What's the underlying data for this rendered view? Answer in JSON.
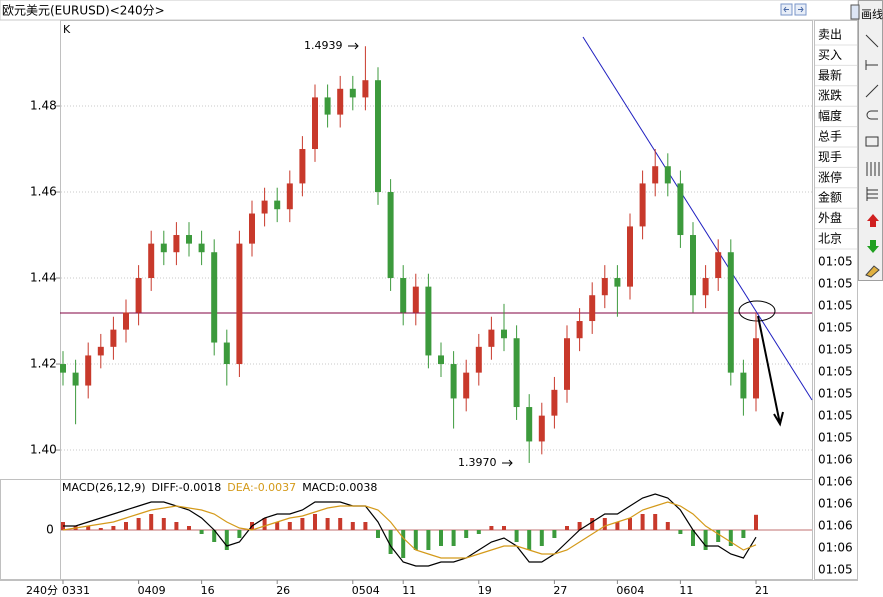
{
  "chart_data": {
    "type": "candlestick",
    "title": "欧元美元(EURUSD)<240分>",
    "period_label": "240分",
    "axis_mark": "K",
    "annotations": [
      "1.4939",
      "1.3970"
    ],
    "categories": [
      "0331",
      null,
      null,
      null,
      null,
      null,
      "0409",
      null,
      null,
      null,
      null,
      "16",
      null,
      null,
      null,
      null,
      null,
      "26",
      null,
      null,
      null,
      null,
      null,
      "0504",
      null,
      null,
      null,
      "11",
      null,
      null,
      null,
      null,
      null,
      "19",
      null,
      null,
      null,
      null,
      null,
      "27",
      null,
      null,
      null,
      null,
      "0604",
      null,
      null,
      null,
      null,
      "11",
      null,
      null,
      null,
      null,
      null,
      "21"
    ],
    "open": [
      1.42,
      1.418,
      1.415,
      1.422,
      1.424,
      1.428,
      1.432,
      1.44,
      1.448,
      1.446,
      1.45,
      1.448,
      1.446,
      1.425,
      1.42,
      1.448,
      1.455,
      1.458,
      1.456,
      1.462,
      1.47,
      1.482,
      1.478,
      1.484,
      1.482,
      1.486,
      1.46,
      1.44,
      1.432,
      1.438,
      1.422,
      1.42,
      1.412,
      1.418,
      1.424,
      1.428,
      1.426,
      1.41,
      1.402,
      1.408,
      1.414,
      1.426,
      1.43,
      1.436,
      1.44,
      1.438,
      1.452,
      1.462,
      1.466,
      1.462,
      1.45,
      1.436,
      1.44,
      1.446,
      1.418,
      1.412
    ],
    "high": [
      1.423,
      1.421,
      1.425,
      1.427,
      1.431,
      1.435,
      1.443,
      1.451,
      1.451,
      1.453,
      1.453,
      1.451,
      1.449,
      1.428,
      1.451,
      1.458,
      1.461,
      1.461,
      1.465,
      1.473,
      1.485,
      1.485,
      1.487,
      1.487,
      1.4939,
      1.489,
      1.463,
      1.443,
      1.441,
      1.441,
      1.425,
      1.423,
      1.421,
      1.427,
      1.431,
      1.434,
      1.429,
      1.413,
      1.411,
      1.417,
      1.429,
      1.433,
      1.439,
      1.443,
      1.443,
      1.455,
      1.465,
      1.47,
      1.469,
      1.465,
      1.453,
      1.443,
      1.449,
      1.449,
      1.421,
      1.432
    ],
    "low": [
      1.415,
      1.406,
      1.412,
      1.419,
      1.421,
      1.425,
      1.429,
      1.437,
      1.443,
      1.443,
      1.445,
      1.443,
      1.422,
      1.415,
      1.417,
      1.445,
      1.452,
      1.453,
      1.453,
      1.459,
      1.467,
      1.475,
      1.475,
      1.479,
      1.479,
      1.457,
      1.437,
      1.429,
      1.429,
      1.419,
      1.417,
      1.405,
      1.409,
      1.415,
      1.421,
      1.423,
      1.407,
      1.397,
      1.399,
      1.405,
      1.411,
      1.423,
      1.427,
      1.433,
      1.431,
      1.435,
      1.449,
      1.459,
      1.459,
      1.447,
      1.432,
      1.433,
      1.437,
      1.415,
      1.408,
      1.409
    ],
    "close": [
      1.418,
      1.415,
      1.422,
      1.424,
      1.428,
      1.432,
      1.44,
      1.448,
      1.446,
      1.45,
      1.448,
      1.446,
      1.425,
      1.42,
      1.448,
      1.455,
      1.458,
      1.456,
      1.462,
      1.47,
      1.482,
      1.478,
      1.484,
      1.482,
      1.486,
      1.46,
      1.44,
      1.432,
      1.438,
      1.422,
      1.42,
      1.412,
      1.418,
      1.424,
      1.428,
      1.426,
      1.41,
      1.402,
      1.408,
      1.414,
      1.426,
      1.43,
      1.436,
      1.44,
      1.438,
      1.452,
      1.462,
      1.466,
      1.462,
      1.45,
      1.436,
      1.44,
      1.446,
      1.418,
      1.412,
      1.426
    ],
    "up_color": "#c8392b",
    "down_color": "#3c9a3c",
    "ylim": [
      1.3935,
      1.5
    ],
    "yticks": [
      {
        "value": 1.4,
        "label": "1.40"
      },
      1.42,
      1.44,
      1.46,
      1.48
    ],
    "grid": true,
    "macd": {
      "title": "MACD(26,12,9)",
      "ylim": [
        -0.012,
        0.012
      ],
      "yticks": [
        0
      ],
      "series": [
        {
          "name": "DIFF:",
          "color": "#000000",
          "values": [
            0.001,
            0.001,
            0.002,
            0.003,
            0.004,
            0.005,
            0.006,
            0.007,
            0.007,
            0.006,
            0.005,
            0.003,
            0.0,
            -0.004,
            -0.003,
            0.001,
            0.003,
            0.004,
            0.004,
            0.005,
            0.007,
            0.007,
            0.007,
            0.006,
            0.006,
            0.002,
            -0.004,
            -0.008,
            -0.009,
            -0.009,
            -0.008,
            -0.008,
            -0.007,
            -0.005,
            -0.003,
            -0.002,
            -0.004,
            -0.008,
            -0.008,
            -0.006,
            -0.003,
            0.0,
            0.002,
            0.004,
            0.004,
            0.006,
            0.008,
            0.009,
            0.008,
            0.005,
            0.0,
            -0.004,
            -0.004,
            -0.006,
            -0.007,
            -0.0018
          ]
        },
        {
          "name": "DEA:",
          "color": "#d49a1a",
          "values": [
            0.0,
            0.0005,
            0.001,
            0.0015,
            0.002,
            0.003,
            0.004,
            0.005,
            0.0055,
            0.006,
            0.0055,
            0.005,
            0.004,
            0.002,
            0.0005,
            0.0,
            0.001,
            0.002,
            0.003,
            0.0035,
            0.0045,
            0.0055,
            0.006,
            0.006,
            0.006,
            0.005,
            0.002,
            -0.002,
            -0.005,
            -0.006,
            -0.007,
            -0.007,
            -0.007,
            -0.006,
            -0.005,
            -0.004,
            -0.004,
            -0.005,
            -0.006,
            -0.006,
            -0.005,
            -0.003,
            -0.001,
            0.001,
            0.002,
            0.003,
            0.005,
            0.006,
            0.007,
            0.006,
            0.004,
            0.001,
            -0.001,
            -0.003,
            -0.005,
            -0.0037
          ]
        },
        {
          "name": "MACD:",
          "color": "#000000",
          "values": [
            0.002,
            0.001,
            0.001,
            0.0005,
            0.001,
            0.002,
            0.003,
            0.004,
            0.003,
            0.002,
            0.001,
            -0.001,
            -0.003,
            -0.005,
            -0.002,
            0.002,
            0.003,
            0.002,
            0.002,
            0.003,
            0.004,
            0.003,
            0.003,
            0.002,
            0.002,
            -0.002,
            -0.006,
            -0.007,
            -0.005,
            -0.005,
            -0.004,
            -0.004,
            -0.002,
            -0.001,
            0.001,
            0.001,
            -0.003,
            -0.005,
            -0.004,
            -0.002,
            0.001,
            0.002,
            0.003,
            0.003,
            0.002,
            0.003,
            0.004,
            0.004,
            0.002,
            -0.001,
            -0.004,
            -0.005,
            -0.003,
            -0.004,
            -0.002,
            0.0038
          ]
        }
      ]
    },
    "side_panel": {
      "labels": [
        "卖出",
        "买入",
        "最新",
        "涨跌",
        "幅度",
        "总手",
        "现手",
        "涨停",
        "金额",
        "外盘",
        "北京"
      ],
      "times": [
        "01:05",
        "01:05",
        "01:05",
        "01:05",
        "01:05",
        "01:05",
        "01:05",
        "01:05",
        "01:05",
        "01:06",
        "01:06",
        "01:06",
        "01:06",
        "01:06",
        "01:05"
      ],
      "toolbar_title": "画线"
    }
  }
}
